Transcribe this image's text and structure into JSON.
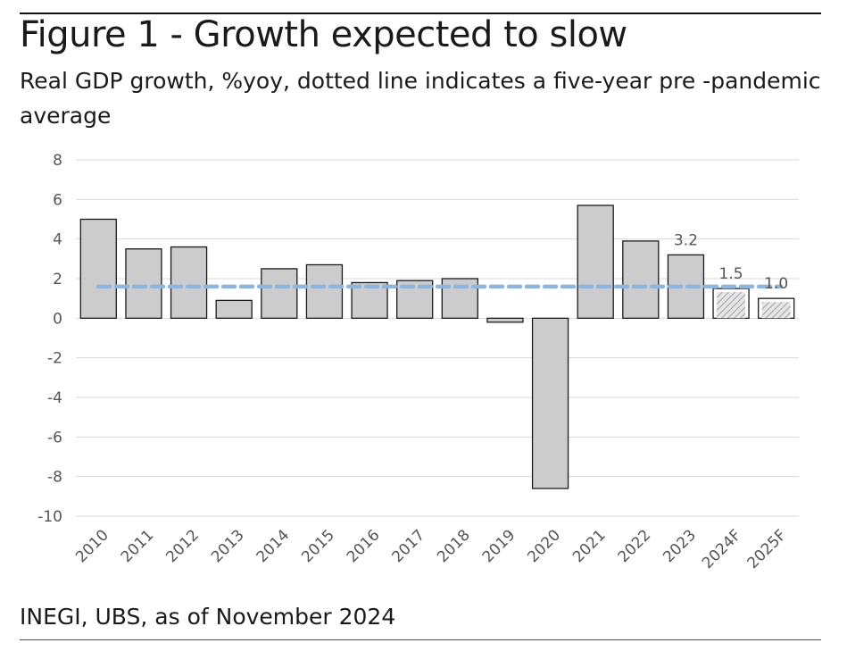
{
  "header": {
    "title": "Figure 1 - Growth expected to slow",
    "subtitle": "Real GDP growth, %yoy, dotted line indicates a five-year pre -pandemic average"
  },
  "footer": {
    "source": "INEGI, UBS, as of November 2024"
  },
  "colors": {
    "bar_fill": "#cccccc",
    "bar_stroke": "#1a1a1a",
    "forecast_hatch": "#9a9a9a",
    "avg_line": "#8fb4de",
    "grid": "#d9d9d9",
    "axis_text": "#555555"
  },
  "chart_data": {
    "type": "bar",
    "title": "Figure 1 - Growth expected to slow",
    "ylabel": "Real GDP growth, %yoy",
    "xlabel": "",
    "ylim": [
      -10,
      8
    ],
    "yticks": [
      "8",
      "6",
      "4",
      "2",
      "0",
      "-2",
      "-4",
      "-6",
      "-8",
      "-10"
    ],
    "ytick_values": [
      8,
      6,
      4,
      2,
      0,
      -2,
      -4,
      -6,
      -8,
      -10
    ],
    "grid": true,
    "categories": [
      "2010",
      "2011",
      "2012",
      "2013",
      "2014",
      "2015",
      "2016",
      "2017",
      "2018",
      "2019",
      "2020",
      "2021",
      "2022",
      "2023",
      "2024F",
      "2025F"
    ],
    "values": [
      5.0,
      3.5,
      3.6,
      0.9,
      2.5,
      2.7,
      1.8,
      1.9,
      2.0,
      -0.2,
      -8.6,
      5.7,
      3.9,
      3.2,
      1.5,
      1.0
    ],
    "forecast": [
      false,
      false,
      false,
      false,
      false,
      false,
      false,
      false,
      false,
      false,
      false,
      false,
      false,
      false,
      true,
      true
    ],
    "pre_pandemic_average": 1.6,
    "data_labels": [
      {
        "category": "2023",
        "text": "3.2"
      },
      {
        "category": "2024F",
        "text": "1.5"
      },
      {
        "category": "2025F",
        "text": "1.0"
      }
    ]
  }
}
